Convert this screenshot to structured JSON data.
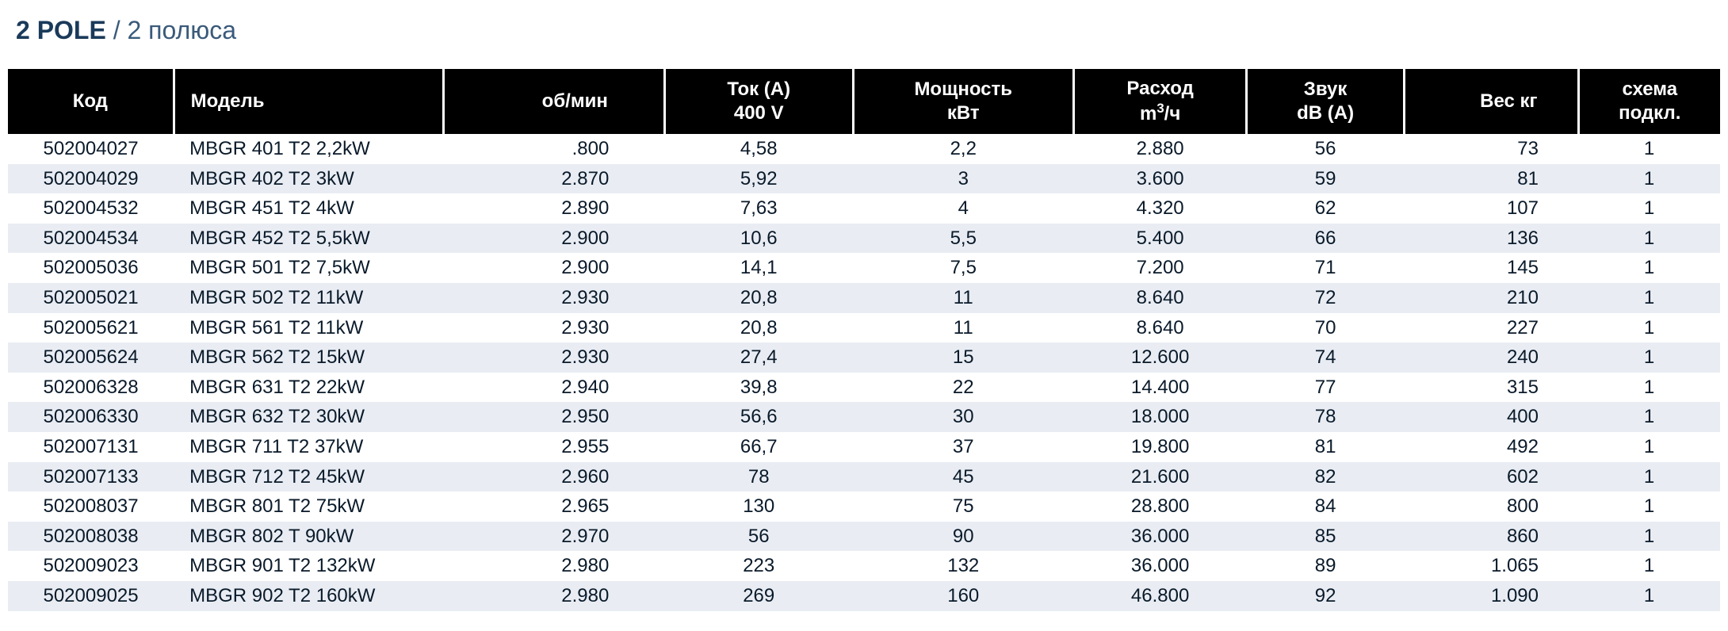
{
  "title": {
    "bold": "2 POLE",
    "sep": " / ",
    "light": "2 полюса"
  },
  "colors": {
    "header_bg": "#000000",
    "header_fg": "#ffffff",
    "row_even": "#ffffff",
    "row_odd": "#e9edf3",
    "title_bold": "#1a3a5a",
    "title_light": "#3a5a7a",
    "text": "#0a1a2a"
  },
  "table": {
    "columns": [
      {
        "key": "code",
        "label": "Код",
        "class": "col-code"
      },
      {
        "key": "model",
        "label": "Модель",
        "class": "col-model"
      },
      {
        "key": "rpm",
        "label": "об/мин",
        "class": "col-rpm"
      },
      {
        "key": "current",
        "label": "Ток (A)\n400 V",
        "class": "col-current"
      },
      {
        "key": "power",
        "label": "Мощность\nкВт",
        "class": "col-power"
      },
      {
        "key": "flow",
        "label": "Расход\nm³/ч",
        "class": "col-flow",
        "html": true
      },
      {
        "key": "sound",
        "label": "Звук\ndB (A)",
        "class": "col-sound"
      },
      {
        "key": "weight",
        "label": "Вес кг",
        "class": "col-weight"
      },
      {
        "key": "scheme",
        "label": "схема\nподкл.",
        "class": "col-scheme"
      }
    ],
    "rows": [
      {
        "code": "502004027",
        "model": "MBGR 401 T2 2,2kW",
        "rpm": ".800",
        "current": "4,58",
        "power": "2,2",
        "flow": "2.880",
        "sound": "56",
        "weight": "73",
        "scheme": "1"
      },
      {
        "code": "502004029",
        "model": "MBGR 402 T2 3kW",
        "rpm": "2.870",
        "current": "5,92",
        "power": "3",
        "flow": "3.600",
        "sound": "59",
        "weight": "81",
        "scheme": "1"
      },
      {
        "code": "502004532",
        "model": "MBGR 451 T2 4kW",
        "rpm": "2.890",
        "current": "7,63",
        "power": "4",
        "flow": "4.320",
        "sound": "62",
        "weight": "107",
        "scheme": "1"
      },
      {
        "code": "502004534",
        "model": "MBGR 452 T2 5,5kW",
        "rpm": "2.900",
        "current": "10,6",
        "power": "5,5",
        "flow": "5.400",
        "sound": "66",
        "weight": "136",
        "scheme": "1"
      },
      {
        "code": "502005036",
        "model": "MBGR 501 T2 7,5kW",
        "rpm": "2.900",
        "current": "14,1",
        "power": "7,5",
        "flow": "7.200",
        "sound": "71",
        "weight": "145",
        "scheme": "1"
      },
      {
        "code": "502005021",
        "model": "MBGR 502 T2 11kW",
        "rpm": "2.930",
        "current": "20,8",
        "power": "11",
        "flow": "8.640",
        "sound": "72",
        "weight": "210",
        "scheme": "1"
      },
      {
        "code": "502005621",
        "model": "MBGR 561 T2 11kW",
        "rpm": "2.930",
        "current": "20,8",
        "power": "11",
        "flow": "8.640",
        "sound": "70",
        "weight": "227",
        "scheme": "1"
      },
      {
        "code": "502005624",
        "model": "MBGR 562 T2 15kW",
        "rpm": "2.930",
        "current": "27,4",
        "power": "15",
        "flow": "12.600",
        "sound": "74",
        "weight": "240",
        "scheme": "1"
      },
      {
        "code": "502006328",
        "model": "MBGR 631 T2 22kW",
        "rpm": "2.940",
        "current": "39,8",
        "power": "22",
        "flow": "14.400",
        "sound": "77",
        "weight": "315",
        "scheme": "1"
      },
      {
        "code": "502006330",
        "model": "MBGR 632 T2 30kW",
        "rpm": "2.950",
        "current": "56,6",
        "power": "30",
        "flow": "18.000",
        "sound": "78",
        "weight": "400",
        "scheme": "1"
      },
      {
        "code": "502007131",
        "model": "MBGR 711 T2 37kW",
        "rpm": "2.955",
        "current": "66,7",
        "power": "37",
        "flow": "19.800",
        "sound": "81",
        "weight": "492",
        "scheme": "1"
      },
      {
        "code": "502007133",
        "model": "MBGR 712 T2 45kW",
        "rpm": "2.960",
        "current": "78",
        "power": "45",
        "flow": "21.600",
        "sound": "82",
        "weight": "602",
        "scheme": "1"
      },
      {
        "code": "502008037",
        "model": "MBGR 801 T2 75kW",
        "rpm": "2.965",
        "current": "130",
        "power": "75",
        "flow": "28.800",
        "sound": "84",
        "weight": "800",
        "scheme": "1"
      },
      {
        "code": "502008038",
        "model": "MBGR 802 T   90kW",
        "rpm": "2.970",
        "current": "56",
        "power": "90",
        "flow": "36.000",
        "sound": "85",
        "weight": "860",
        "scheme": "1"
      },
      {
        "code": "502009023",
        "model": "MBGR 901 T2 132kW",
        "rpm": "2.980",
        "current": "223",
        "power": "132",
        "flow": "36.000",
        "sound": "89",
        "weight": "1.065",
        "scheme": "1"
      },
      {
        "code": "502009025",
        "model": "MBGR 902 T2 160kW",
        "rpm": "2.980",
        "current": "269",
        "power": "160",
        "flow": "46.800",
        "sound": "92",
        "weight": "1.090",
        "scheme": "1"
      }
    ]
  }
}
